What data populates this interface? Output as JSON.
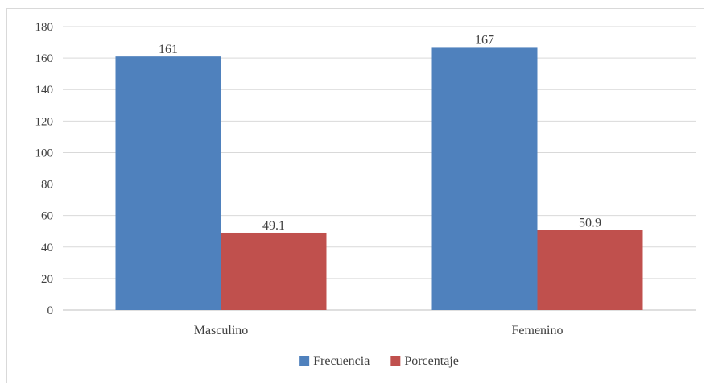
{
  "chart_data": {
    "type": "bar",
    "categories": [
      "Masculino",
      "Femenino"
    ],
    "series": [
      {
        "name": "Frecuencia",
        "values": [
          161,
          167
        ],
        "color": "#4f81bd"
      },
      {
        "name": "Porcentaje",
        "values": [
          49.1,
          50.9
        ],
        "color": "#c0504d"
      }
    ],
    "data_labels": [
      [
        "161",
        "167"
      ],
      [
        "49.1",
        "50.9"
      ]
    ],
    "ylim": [
      0,
      180
    ],
    "yticks": [
      0,
      20,
      40,
      60,
      80,
      100,
      120,
      140,
      160,
      180
    ],
    "grid": true,
    "legend_position": "bottom",
    "title": "",
    "xlabel": "",
    "ylabel": ""
  }
}
